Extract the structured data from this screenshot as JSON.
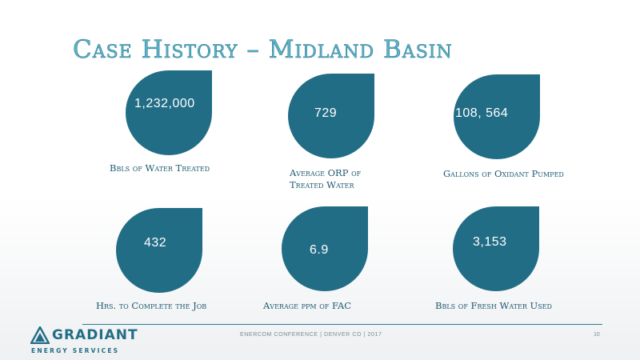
{
  "title": "Case History – Midland Basin",
  "colors": {
    "accent": "#226d86",
    "title": "#5fb3c9"
  },
  "metrics": [
    {
      "value": "1,232,000",
      "caption_lines": [
        "Bbls of Water Treated"
      ]
    },
    {
      "value": "729",
      "caption_lines": [
        "Average ORP of",
        "Treated Water"
      ]
    },
    {
      "value": "108, 564",
      "caption_lines": [
        "Gallons of Oxidant Pumped"
      ]
    },
    {
      "value": "432",
      "caption_lines": [
        "Hrs. to Complete the Job"
      ]
    },
    {
      "value": "6.9",
      "caption_lines": [
        "Average ppm of FAC"
      ]
    },
    {
      "value": "3,153",
      "caption_lines": [
        "Bbls of Fresh Water Used"
      ]
    }
  ],
  "footer": {
    "text": "ENERCOM CONFERENCE | DENVER CO | 2017",
    "page_number": "10"
  },
  "logo": {
    "name": "GRADIANT",
    "subtitle": "ENERGY SERVICES",
    "icon": "triangle-logo-icon"
  }
}
